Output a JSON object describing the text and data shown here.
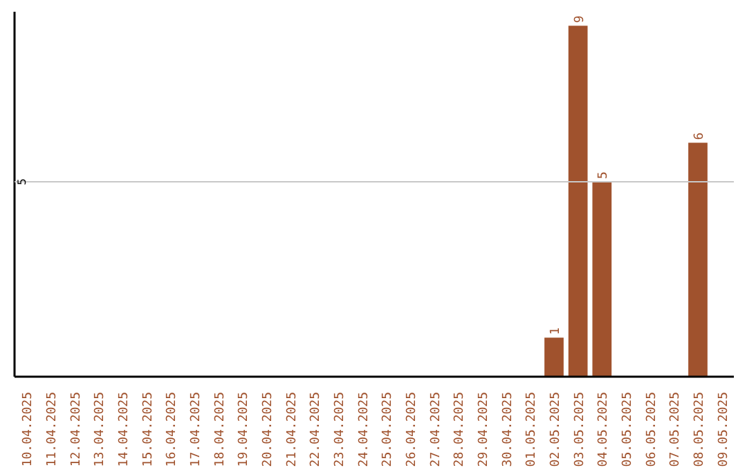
{
  "chart_data": {
    "type": "bar",
    "categories": [
      "10.04.2025",
      "11.04.2025",
      "12.04.2025",
      "13.04.2025",
      "14.04.2025",
      "15.04.2025",
      "16.04.2025",
      "17.04.2025",
      "18.04.2025",
      "19.04.2025",
      "20.04.2025",
      "21.04.2025",
      "22.04.2025",
      "23.04.2025",
      "24.04.2025",
      "25.04.2025",
      "26.04.2025",
      "27.04.2025",
      "28.04.2025",
      "29.04.2025",
      "30.04.2025",
      "01.05.2025",
      "02.05.2025",
      "03.05.2025",
      "04.05.2025",
      "05.05.2025",
      "06.05.2025",
      "07.05.2025",
      "08.05.2025",
      "09.05.2025"
    ],
    "values": [
      null,
      null,
      null,
      null,
      null,
      null,
      null,
      null,
      null,
      null,
      null,
      null,
      null,
      null,
      null,
      null,
      null,
      null,
      null,
      null,
      null,
      null,
      1,
      9,
      5,
      null,
      null,
      null,
      6,
      null
    ],
    "data_labels": true,
    "color": "#a0522d",
    "ref_lines": [
      {
        "axis": "y",
        "value": 5,
        "label": "5",
        "color": "#c8c8c8"
      }
    ]
  }
}
